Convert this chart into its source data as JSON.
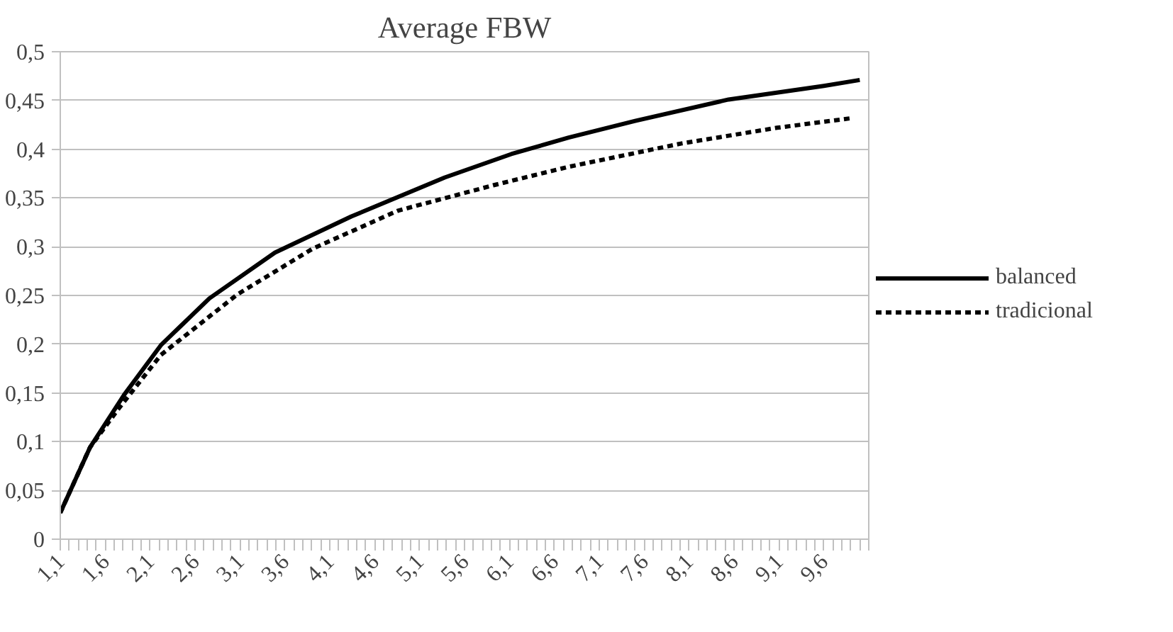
{
  "chart_data": {
    "type": "line",
    "title": "Average FBW",
    "series": [
      {
        "name": "balanced",
        "color": "#000000",
        "line_style": "solid",
        "x": [
          1.1,
          1.43,
          1.81,
          2.22,
          2.76,
          3.49,
          4.34,
          5.38,
          6.12,
          6.76,
          7.5,
          8.54,
          9.6,
          10.0
        ],
        "values": [
          0.027,
          0.094,
          0.148,
          0.199,
          0.247,
          0.294,
          0.331,
          0.371,
          0.395,
          0.412,
          0.429,
          0.451,
          0.465,
          0.471
        ]
      },
      {
        "name": "tradicional",
        "color": "#000000",
        "line_style": "dashed",
        "x": [
          1.1,
          1.43,
          1.75,
          2.22,
          3.07,
          3.91,
          4.86,
          5.92,
          6.76,
          8.02,
          9.08,
          9.92
        ],
        "values": [
          0.027,
          0.094,
          0.134,
          0.189,
          0.251,
          0.298,
          0.337,
          0.363,
          0.382,
          0.406,
          0.422,
          0.432
        ]
      }
    ],
    "xlim": [
      1.1,
      10.1
    ],
    "ylim": [
      0,
      0.5
    ],
    "xticks": [
      {
        "value": 1.1,
        "label": "1,1"
      },
      {
        "value": 1.6,
        "label": "1,6"
      },
      {
        "value": 2.1,
        "label": "2,1"
      },
      {
        "value": 2.6,
        "label": "2,6"
      },
      {
        "value": 3.1,
        "label": "3,1"
      },
      {
        "value": 3.6,
        "label": "3,6"
      },
      {
        "value": 4.1,
        "label": "4,1"
      },
      {
        "value": 4.6,
        "label": "4,6"
      },
      {
        "value": 5.1,
        "label": "5,1"
      },
      {
        "value": 5.6,
        "label": "5,6"
      },
      {
        "value": 6.1,
        "label": "6,1"
      },
      {
        "value": 6.6,
        "label": "6,6"
      },
      {
        "value": 7.1,
        "label": "7,1"
      },
      {
        "value": 7.6,
        "label": "7,6"
      },
      {
        "value": 8.1,
        "label": "8,1"
      },
      {
        "value": 8.6,
        "label": "8,6"
      },
      {
        "value": 9.1,
        "label": "9,1"
      },
      {
        "value": 9.6,
        "label": "9,6"
      }
    ],
    "yticks": [
      {
        "value": 0,
        "label": "0"
      },
      {
        "value": 0.05,
        "label": "0,05"
      },
      {
        "value": 0.1,
        "label": "0,1"
      },
      {
        "value": 0.15,
        "label": "0,15"
      },
      {
        "value": 0.2,
        "label": "0,2"
      },
      {
        "value": 0.25,
        "label": "0,25"
      },
      {
        "value": 0.3,
        "label": "0,3"
      },
      {
        "value": 0.35,
        "label": "0,35"
      },
      {
        "value": 0.4,
        "label": "0,4"
      },
      {
        "value": 0.45,
        "label": "0,45"
      },
      {
        "value": 0.5,
        "label": "0,5"
      }
    ],
    "grid": "y",
    "legend": "right"
  }
}
